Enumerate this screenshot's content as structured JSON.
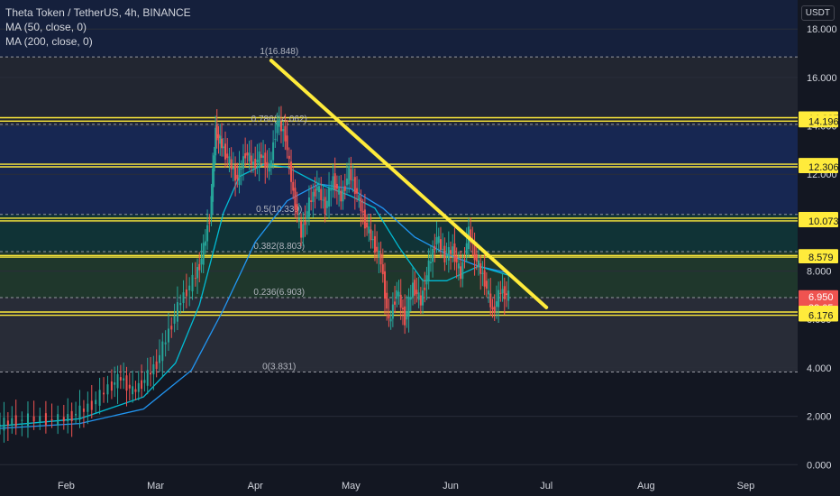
{
  "legend": {
    "symbol_line": "Theta Token / TetherUS, 4h, BINANCE",
    "ma50": "MA (50, close, 0)",
    "ma200": "MA (200, close, 0)"
  },
  "unit_badge": "USDT",
  "chart_data": {
    "type": "candlestick",
    "y_ticks": [
      "18.000",
      "16.000",
      "14.000",
      "12.000",
      "10.000",
      "8.000",
      "6.000",
      "4.000",
      "2.000",
      "0.000"
    ],
    "y_tick_values": [
      18,
      16,
      14,
      12,
      10,
      8,
      6,
      4,
      2,
      0
    ],
    "x_ticks": [
      "Feb",
      "Mar",
      "Apr",
      "May",
      "Jun",
      "Jul",
      "Aug",
      "Sep"
    ],
    "ylim": [
      -0.4,
      19.2
    ],
    "fib_levels": [
      {
        "label": "1(16.848)",
        "value": 16.848,
        "fill": "#5d606b"
      },
      {
        "label": "0.786(14.062)",
        "value": 14.062,
        "fill": "#2962ff"
      },
      {
        "label": "0.5(10.339)",
        "value": 10.339,
        "fill": "#089981"
      },
      {
        "label": "0.382(8.803)",
        "value": 8.803,
        "fill": "#4caf50"
      },
      {
        "label": "0.236(6.903)",
        "value": 6.903,
        "fill": "#787b86"
      },
      {
        "label": "0(3.831)",
        "value": 3.831,
        "fill": "#b71c1c"
      }
    ],
    "horizontal_lines": [
      14.337,
      14.196,
      12.415,
      12.306,
      10.184,
      10.073,
      8.644,
      8.579,
      6.307,
      6.176
    ],
    "price_tags": [
      {
        "text": "14.337",
        "value": 14.337,
        "bg": "#ffeb3b",
        "color": "#131722"
      },
      {
        "text": "14.196",
        "value": 14.196,
        "bg": "#ffeb3b",
        "color": "#131722"
      },
      {
        "text": "12.415",
        "value": 12.415,
        "bg": "#ffeb3b",
        "color": "#131722"
      },
      {
        "text": "12.306",
        "value": 12.306,
        "bg": "#ffeb3b",
        "color": "#131722"
      },
      {
        "text": "10.184",
        "value": 10.184,
        "bg": "#ffeb3b",
        "color": "#131722"
      },
      {
        "text": "10.073",
        "value": 10.073,
        "bg": "#ffeb3b",
        "color": "#131722"
      },
      {
        "text": "8.644",
        "value": 8.644,
        "bg": "#ffeb3b",
        "color": "#131722"
      },
      {
        "text": "8.579",
        "value": 8.579,
        "bg": "#ffeb3b",
        "color": "#131722"
      },
      {
        "text": "6.950",
        "value": 6.95,
        "bg": "#ef5350",
        "color": "#ffffff"
      },
      {
        "text": "33:05",
        "value": 6.5,
        "bg": "#ef5350",
        "color": "#ffffff"
      },
      {
        "text": "6.307",
        "value": 6.307,
        "bg": "#ffeb3b",
        "color": "#131722"
      },
      {
        "text": "6.176",
        "value": 6.176,
        "bg": "#ffeb3b",
        "color": "#131722"
      }
    ],
    "trendline": {
      "start": [
        0.34,
        16.7
      ],
      "end": [
        0.685,
        6.5
      ],
      "color": "#ffeb3b"
    },
    "price_path": [
      [
        0.0,
        1.6
      ],
      [
        0.02,
        1.8
      ],
      [
        0.05,
        1.9
      ],
      [
        0.08,
        1.85
      ],
      [
        0.1,
        2.1
      ],
      [
        0.12,
        2.5
      ],
      [
        0.14,
        3.2
      ],
      [
        0.155,
        3.6
      ],
      [
        0.17,
        3.0
      ],
      [
        0.185,
        3.5
      ],
      [
        0.2,
        4.2
      ],
      [
        0.215,
        5.5
      ],
      [
        0.23,
        6.8
      ],
      [
        0.245,
        7.6
      ],
      [
        0.255,
        8.5
      ],
      [
        0.265,
        10.2
      ],
      [
        0.272,
        13.8
      ],
      [
        0.28,
        13.2
      ],
      [
        0.29,
        12.5
      ],
      [
        0.3,
        11.8
      ],
      [
        0.31,
        12.9
      ],
      [
        0.32,
        12.4
      ],
      [
        0.33,
        12.8
      ],
      [
        0.34,
        12.2
      ],
      [
        0.35,
        14.2
      ],
      [
        0.36,
        13.6
      ],
      [
        0.37,
        11.2
      ],
      [
        0.38,
        9.5
      ],
      [
        0.39,
        10.8
      ],
      [
        0.4,
        11.5
      ],
      [
        0.41,
        10.6
      ],
      [
        0.42,
        11.8
      ],
      [
        0.43,
        11.0
      ],
      [
        0.44,
        12.1
      ],
      [
        0.45,
        11.2
      ],
      [
        0.46,
        10.0
      ],
      [
        0.47,
        9.2
      ],
      [
        0.48,
        8.4
      ],
      [
        0.49,
        5.8
      ],
      [
        0.5,
        7.2
      ],
      [
        0.51,
        6.0
      ],
      [
        0.52,
        7.4
      ],
      [
        0.53,
        6.7
      ],
      [
        0.54,
        8.2
      ],
      [
        0.55,
        9.4
      ],
      [
        0.56,
        8.6
      ],
      [
        0.57,
        8.9
      ],
      [
        0.58,
        7.8
      ],
      [
        0.59,
        9.6
      ],
      [
        0.6,
        8.4
      ],
      [
        0.61,
        7.6
      ],
      [
        0.62,
        6.3
      ],
      [
        0.63,
        7.2
      ],
      [
        0.64,
        6.95
      ]
    ],
    "ma50_path": [
      [
        0.0,
        1.6
      ],
      [
        0.1,
        1.9
      ],
      [
        0.18,
        2.8
      ],
      [
        0.22,
        4.2
      ],
      [
        0.25,
        6.6
      ],
      [
        0.28,
        10.4
      ],
      [
        0.3,
        11.9
      ],
      [
        0.33,
        12.4
      ],
      [
        0.36,
        12.3
      ],
      [
        0.4,
        11.6
      ],
      [
        0.44,
        11.1
      ],
      [
        0.47,
        10.6
      ],
      [
        0.5,
        9.0
      ],
      [
        0.53,
        7.6
      ],
      [
        0.56,
        7.6
      ],
      [
        0.6,
        8.2
      ],
      [
        0.64,
        7.8
      ]
    ],
    "ma200_path": [
      [
        0.0,
        1.5
      ],
      [
        0.1,
        1.7
      ],
      [
        0.18,
        2.3
      ],
      [
        0.24,
        3.9
      ],
      [
        0.28,
        6.4
      ],
      [
        0.32,
        9.2
      ],
      [
        0.36,
        10.9
      ],
      [
        0.4,
        11.6
      ],
      [
        0.44,
        11.4
      ],
      [
        0.48,
        10.6
      ],
      [
        0.52,
        9.4
      ],
      [
        0.56,
        8.7
      ],
      [
        0.6,
        8.2
      ],
      [
        0.64,
        7.9
      ]
    ]
  }
}
